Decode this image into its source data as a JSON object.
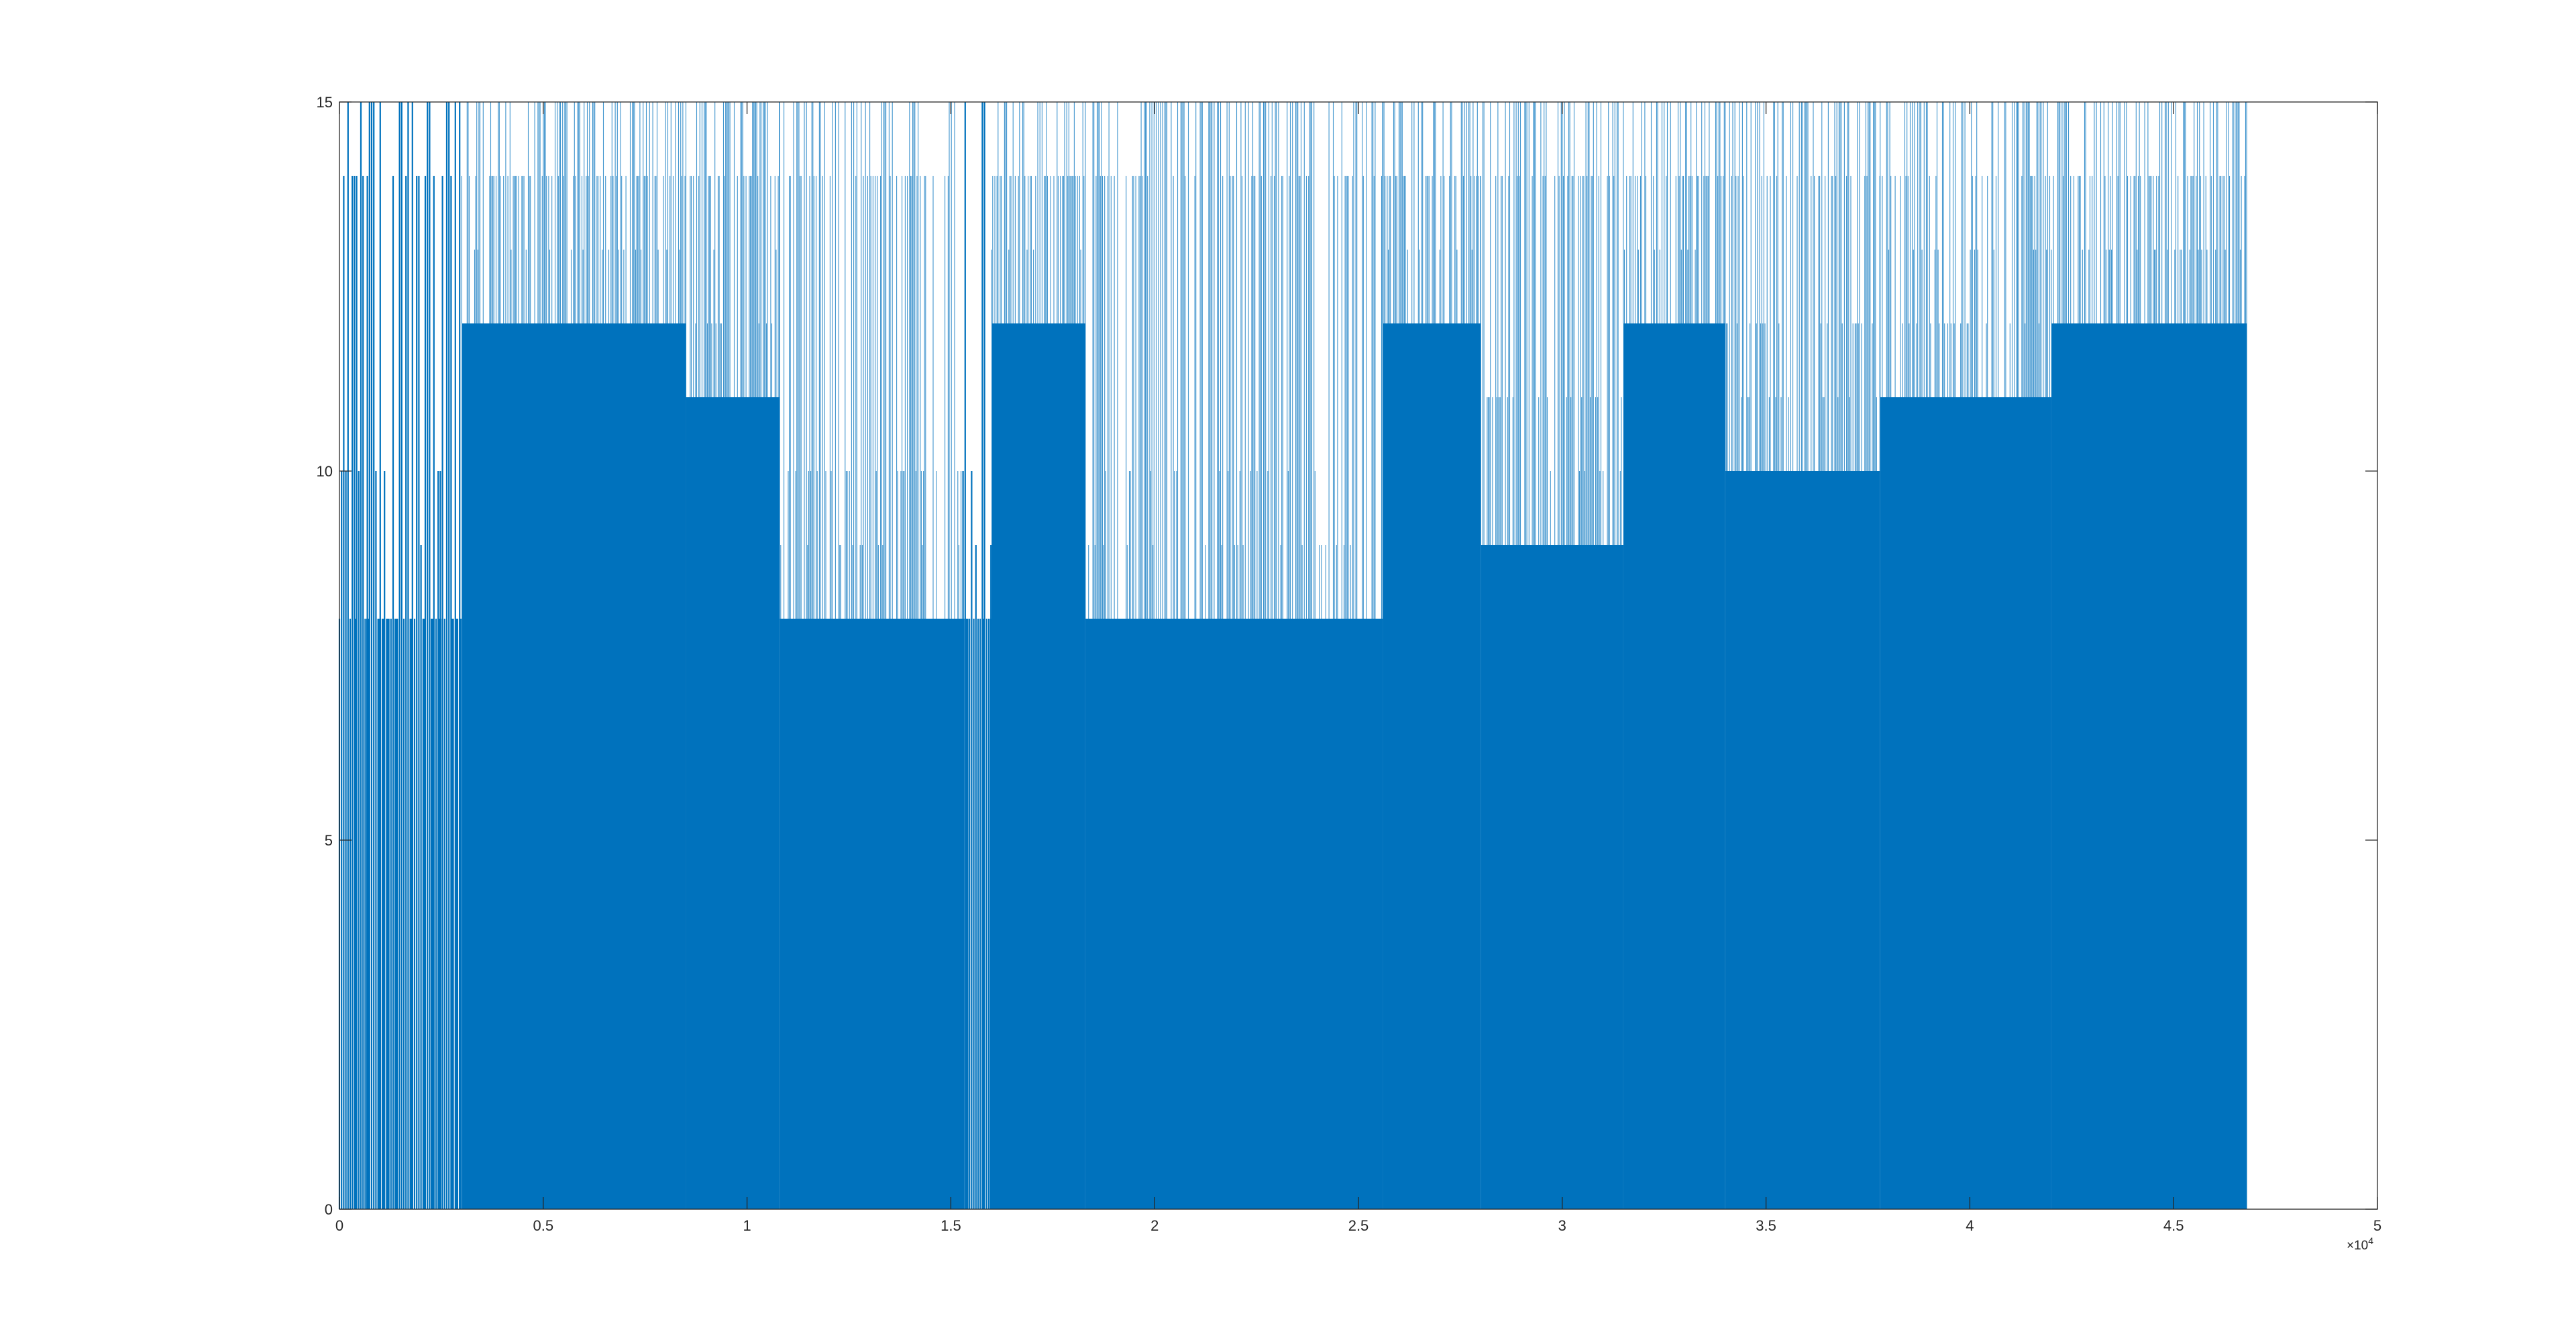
{
  "figure": {
    "background": "#ffffff"
  },
  "chart_data": {
    "type": "line",
    "title": "",
    "xlabel": "",
    "ylabel": "",
    "xlim": [
      0,
      50000
    ],
    "ylim": [
      0,
      15
    ],
    "x_exponent_label": "×10",
    "x_exponent_power": "4",
    "x_ticks": [
      0,
      5000,
      10000,
      15000,
      20000,
      25000,
      30000,
      35000,
      40000,
      45000,
      50000
    ],
    "x_tick_labels": [
      "0",
      "0.5",
      "1",
      "1.5",
      "2",
      "2.5",
      "3",
      "3.5",
      "4",
      "4.5",
      "5"
    ],
    "y_ticks": [
      0,
      5,
      10,
      15
    ],
    "y_tick_labels": [
      "0",
      "5",
      "10",
      "15"
    ],
    "grid": false,
    "box": true,
    "colors": {
      "series": "#0072BD",
      "axes": "#262626",
      "background": "#ffffff"
    },
    "series": [
      {
        "sample_count": 46800,
        "value_range": [
          0,
          15
        ],
        "envelope": [
          {
            "x_start": 0,
            "x_end": 3000,
            "typical_min": 0,
            "typical_max": 8,
            "peak_max": 15,
            "dense": false
          },
          {
            "x_start": 3000,
            "x_end": 8500,
            "typical_min": 0,
            "typical_max": 12,
            "peak_max": 15,
            "dense": true
          },
          {
            "x_start": 8500,
            "x_end": 10800,
            "typical_min": 0,
            "typical_max": 11,
            "peak_max": 15,
            "dense": true
          },
          {
            "x_start": 10800,
            "x_end": 15300,
            "typical_min": 0,
            "typical_max": 8,
            "peak_max": 15,
            "dense": true
          },
          {
            "x_start": 15300,
            "x_end": 16000,
            "typical_min": 0,
            "typical_max": 8,
            "peak_max": 15,
            "dense": false
          },
          {
            "x_start": 16000,
            "x_end": 18300,
            "typical_min": 0,
            "typical_max": 12,
            "peak_max": 15,
            "dense": true
          },
          {
            "x_start": 18300,
            "x_end": 25600,
            "typical_min": 0,
            "typical_max": 8,
            "peak_max": 15,
            "dense": true
          },
          {
            "x_start": 25600,
            "x_end": 28000,
            "typical_min": 0,
            "typical_max": 12,
            "peak_max": 15,
            "dense": true
          },
          {
            "x_start": 28000,
            "x_end": 31500,
            "typical_min": 0,
            "typical_max": 9,
            "peak_max": 15,
            "dense": true
          },
          {
            "x_start": 31500,
            "x_end": 34000,
            "typical_min": 0,
            "typical_max": 12,
            "peak_max": 15,
            "dense": true
          },
          {
            "x_start": 34000,
            "x_end": 37800,
            "typical_min": 0,
            "typical_max": 10,
            "peak_max": 15,
            "dense": true
          },
          {
            "x_start": 37800,
            "x_end": 42000,
            "typical_min": 0,
            "typical_max": 11,
            "peak_max": 15,
            "dense": true
          },
          {
            "x_start": 42000,
            "x_end": 46800,
            "typical_min": 0,
            "typical_max": 12,
            "peak_max": 15,
            "dense": true
          }
        ]
      }
    ]
  }
}
